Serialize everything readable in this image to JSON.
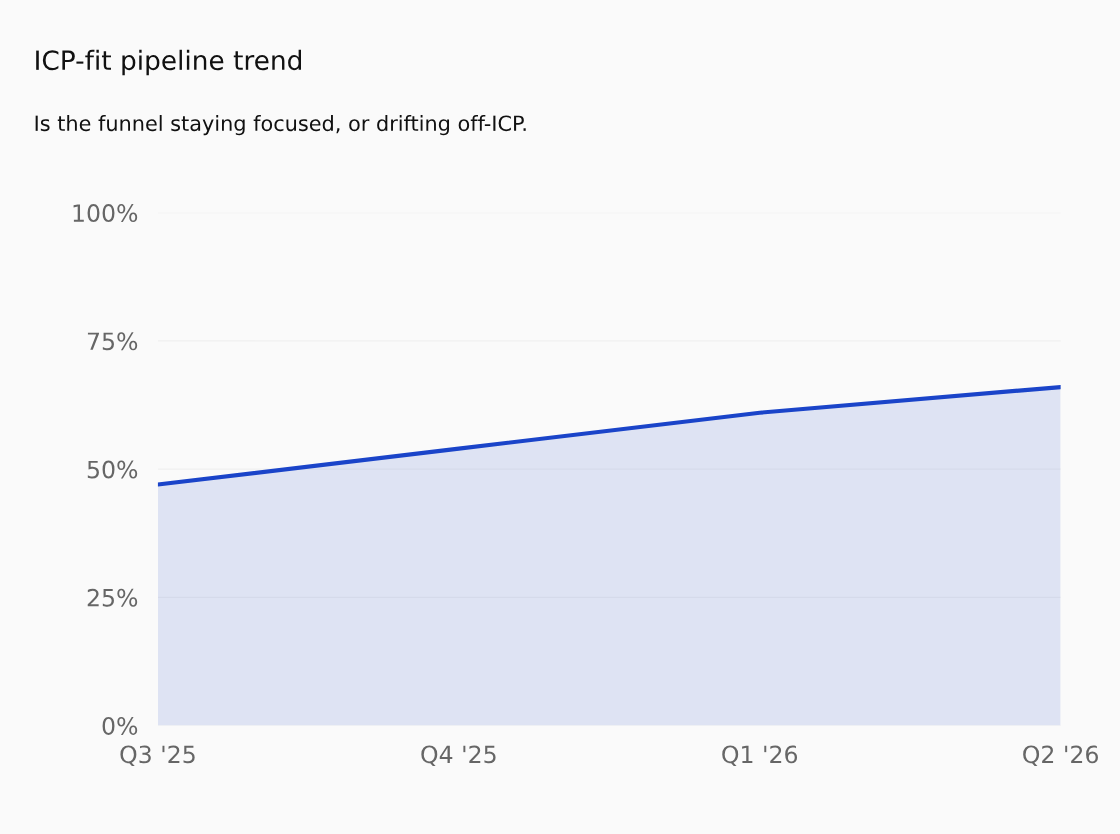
{
  "chart_data": {
    "type": "area",
    "title": "ICP-fit pipeline trend",
    "subtitle": "Is the funnel staying focused, or drifting off-ICP.",
    "categories": [
      "Q3 '25",
      "Q4 '25",
      "Q1 '26",
      "Q2 '26"
    ],
    "series": [
      {
        "color": "#1a44c9",
        "values": [
          47,
          54,
          61,
          66
        ]
      }
    ],
    "ylim": [
      0,
      100
    ],
    "yticks": [
      {
        "value": 0,
        "label": "0%"
      },
      {
        "value": 25,
        "label": "25%"
      },
      {
        "value": 50,
        "label": "50%"
      },
      {
        "value": 75,
        "label": "75%"
      },
      {
        "value": 100,
        "label": "100%"
      }
    ],
    "grid": "y"
  }
}
